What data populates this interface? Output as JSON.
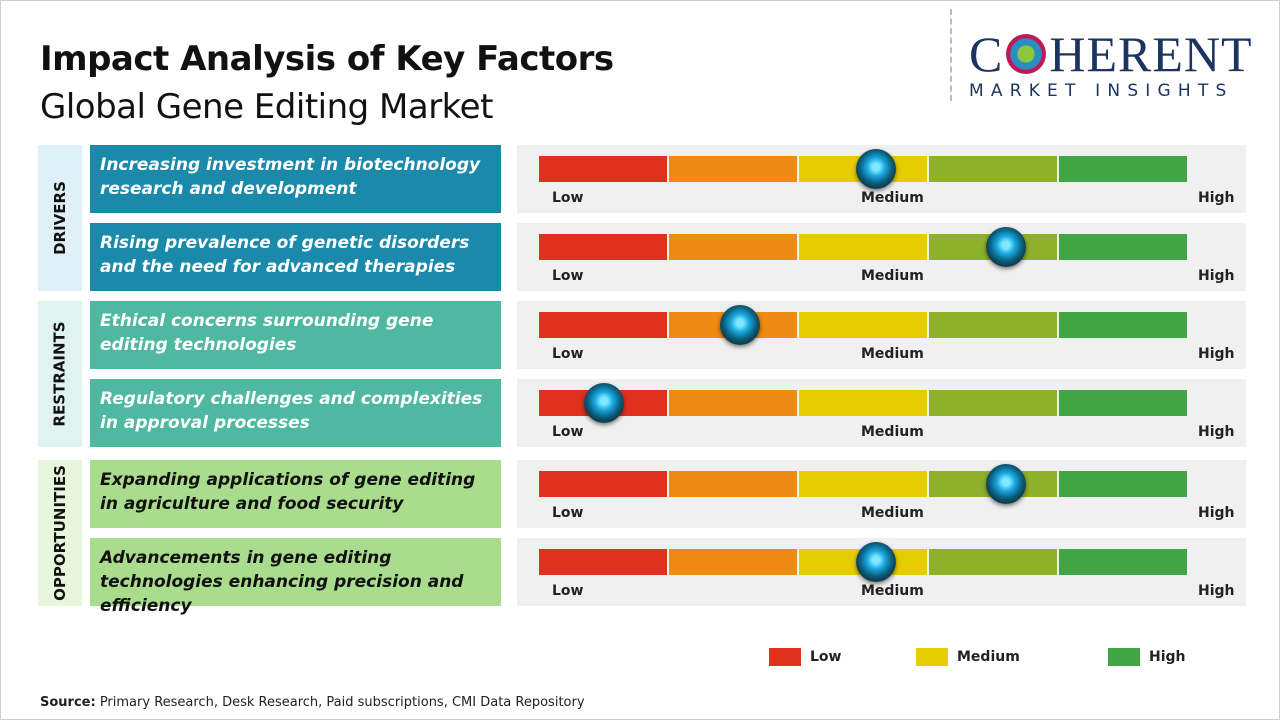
{
  "title": "Impact Analysis of Key Factors",
  "subtitle": "Global Gene Editing Market",
  "logo": {
    "line1": "COHERENT",
    "line2": "MARKET INSIGHTS"
  },
  "chart_data": {
    "type": "gauge",
    "scale": [
      "Low",
      "Medium",
      "High"
    ],
    "colors": [
      "#e0301e",
      "#ef8a12",
      "#e6cc00",
      "#8fb02a",
      "#3fa545"
    ],
    "groups": [
      {
        "name": "DRIVERS",
        "color": "#1b8aaa",
        "side": "#dff0f8",
        "text": "#ffffff",
        "factors": [
          {
            "label": "Increasing investment in biotechnology research and development",
            "value": 0.52
          },
          {
            "label": "Rising prevalence of genetic disorders and the need for advanced therapies",
            "value": 0.72
          }
        ]
      },
      {
        "name": "RESTRAINTS",
        "color": "#4fb8a0",
        "side": "#e0f3ef",
        "text": "#ffffff",
        "factors": [
          {
            "label": "Ethical concerns surrounding gene editing technologies",
            "value": 0.31
          },
          {
            "label": "Regulatory challenges and complexities in approval processes",
            "value": 0.1
          }
        ]
      },
      {
        "name": "OPPORTUNITIES",
        "color": "#a9dc8c",
        "side": "#e8f6dd",
        "text": "#111111",
        "factors": [
          {
            "label": "Expanding applications of gene editing in agriculture and food security",
            "value": 0.72
          },
          {
            "label": "Advancements in gene editing technologies enhancing precision and efficiency",
            "value": 0.52
          }
        ]
      }
    ],
    "legend": [
      {
        "label": "Low",
        "color": "#e0301e"
      },
      {
        "label": "Medium",
        "color": "#e6cc00"
      },
      {
        "label": "High",
        "color": "#3fa545"
      }
    ]
  },
  "source": {
    "label": "Source:",
    "text": " Primary Research, Desk Research, Paid subscriptions, CMI Data Repository"
  }
}
